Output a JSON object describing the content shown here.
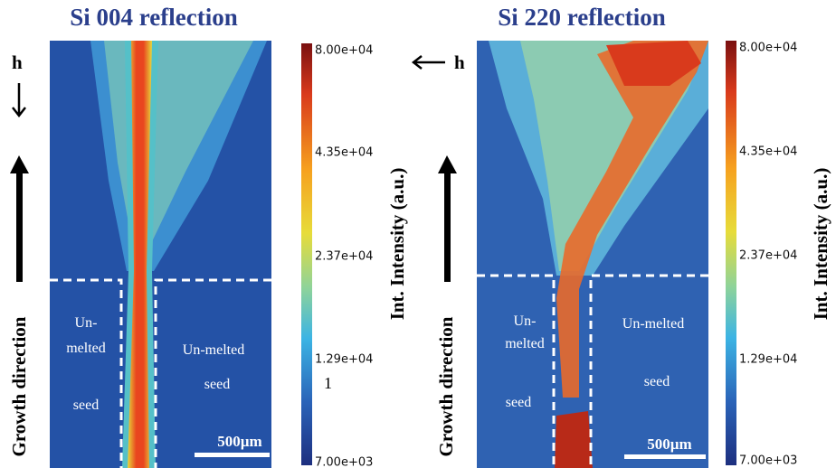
{
  "panels": [
    {
      "title": "Si 004 reflection",
      "h_label": "h",
      "growth_label": "Growth direction",
      "region_left": [
        "Un-",
        "melted",
        "seed"
      ],
      "region_right": [
        "Un-melted",
        "seed"
      ],
      "scale_bar": "500µm",
      "colorbar_ticks": [
        "8.00e+04",
        "4.35e+04",
        "2.37e+04",
        "1.29e+04",
        "7.00e+03"
      ],
      "colorbar_label": "Int. Intensity (a.u.)",
      "stray_mark": "1"
    },
    {
      "title": "Si 220 reflection",
      "h_label": "h",
      "growth_label": "Growth direction",
      "region_left": [
        "Un-",
        "melted",
        "seed"
      ],
      "region_right": [
        "Un-melted",
        "seed"
      ],
      "scale_bar": "500µm",
      "colorbar_ticks": [
        "8.00e+04",
        "4.35e+04",
        "2.37e+04",
        "1.29e+04",
        "7.00e+03"
      ],
      "colorbar_label": "Int. Intensity (a.u.)"
    }
  ]
}
